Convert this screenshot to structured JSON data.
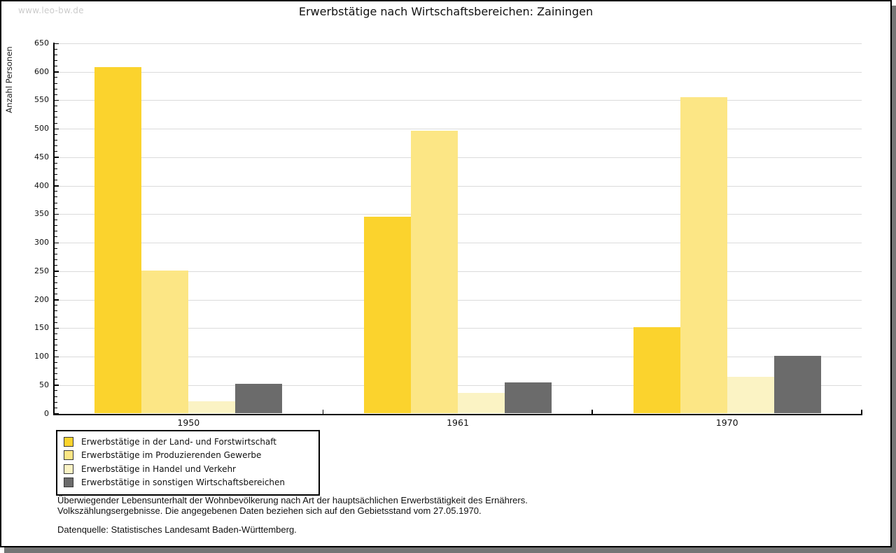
{
  "watermark": "www.leo-bw.de",
  "title": "Erwerbstätige nach Wirtschaftsbereichen: Zainingen",
  "chart_data": {
    "type": "bar",
    "title": "Erwerbstätige nach Wirtschaftsbereichen: Zainingen",
    "xlabel": "",
    "ylabel": "Anzahl Personen",
    "categories": [
      "1950",
      "1961",
      "1970"
    ],
    "series": [
      {
        "name": "Erwerbstätige in der Land- und Forstwirtschaft",
        "color": "#FBD32D",
        "values": [
          608,
          346,
          152
        ]
      },
      {
        "name": "Erwerbstätige im Produzierenden Gewerbe",
        "color": "#FCE685",
        "values": [
          251,
          496,
          556
        ]
      },
      {
        "name": "Erwerbstätige in Handel und Verkehr",
        "color": "#FBF3C4",
        "values": [
          22,
          36,
          64
        ]
      },
      {
        "name": "Erwerbstätige in sonstigen Wirtschaftsbereichen",
        "color": "#6B6B6B",
        "values": [
          52,
          55,
          101
        ]
      }
    ],
    "ylim": [
      0,
      650
    ],
    "ytick_step": 50,
    "minor_tick_step": 10,
    "grid": true,
    "legend_position": "bottom-left"
  },
  "footnotes": [
    "Überwiegender Lebensunterhalt der Wohnbevölkerung nach Art der hauptsächlichen Erwerbstätigkeit des Ernährers.",
    "Volkszählungsergebnisse. Die angegebenen Daten beziehen sich auf den Gebietsstand vom 27.05.1970."
  ],
  "source": "Datenquelle: Statistisches Landesamt Baden-Württemberg."
}
